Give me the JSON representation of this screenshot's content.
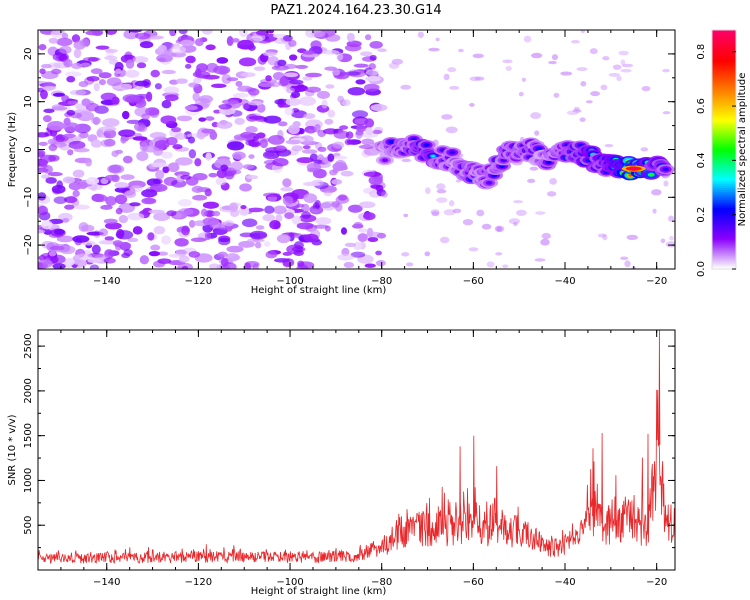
{
  "title": "PAZ1.2024.164.23.30.G14",
  "chart_data": [
    {
      "type": "heatmap",
      "xlabel": "Height of straight line (km)",
      "ylabel": "Frequency (Hz)",
      "xlim": [
        -155,
        -16
      ],
      "ylim": [
        -25,
        25
      ],
      "x_ticks": [
        -140,
        -120,
        -100,
        -80,
        -60,
        -40,
        -20
      ],
      "y_ticks": [
        -20,
        -10,
        0,
        10,
        20
      ],
      "colorbar": {
        "label": "Normalized spectral amplitude",
        "range": [
          0.0,
          0.88
        ],
        "ticks": [
          0.0,
          0.2,
          0.4,
          0.6,
          0.8
        ],
        "colormap": "gist_rainbow_r",
        "colors": [
          "#ffffff",
          "#8b00ff",
          "#0000ff",
          "#00ffff",
          "#00ff00",
          "#ffff00",
          "#ff7f00",
          "#ff0000",
          "#ff0066"
        ]
      },
      "noise_region": {
        "x_range": [
          -155,
          -80
        ],
        "freq_range": [
          -25,
          25
        ],
        "amplitude_range": [
          0.05,
          0.12
        ]
      },
      "signal_track": [
        {
          "x": -80,
          "freq": -1,
          "amp": 0.18
        },
        {
          "x": -75,
          "freq": 1,
          "amp": 0.25
        },
        {
          "x": -71,
          "freq": 0,
          "amp": 0.3
        },
        {
          "x": -68,
          "freq": -1.5,
          "amp": 0.3
        },
        {
          "x": -65,
          "freq": -2,
          "amp": 0.2
        },
        {
          "x": -60,
          "freq": -5,
          "amp": 0.25
        },
        {
          "x": -57,
          "freq": -6,
          "amp": 0.22
        },
        {
          "x": -53,
          "freq": -1,
          "amp": 0.25
        },
        {
          "x": -48,
          "freq": 0,
          "amp": 0.25
        },
        {
          "x": -44,
          "freq": -2,
          "amp": 0.2
        },
        {
          "x": -38,
          "freq": 0,
          "amp": 0.35
        },
        {
          "x": -34,
          "freq": -2,
          "amp": 0.35
        },
        {
          "x": -30,
          "freq": -3.5,
          "amp": 0.35
        },
        {
          "x": -25,
          "freq": -4,
          "amp": 0.88
        },
        {
          "x": -22,
          "freq": -4,
          "amp": 0.5
        },
        {
          "x": -18,
          "freq": -3,
          "amp": 0.3
        }
      ]
    },
    {
      "type": "line",
      "xlabel": "Height of straight line (km)",
      "ylabel": "SNR (10 * v/v)",
      "xlim": [
        -155,
        -16
      ],
      "ylim": [
        0,
        2680
      ],
      "x_ticks": [
        -140,
        -120,
        -100,
        -80,
        -60,
        -40,
        -20
      ],
      "y_ticks": [
        500,
        1000,
        1500,
        2000,
        2500
      ],
      "color": "#e8272a",
      "series": [
        {
          "envelope": [
            {
              "x": -155,
              "base": 130,
              "max": 260
            },
            {
              "x": -130,
              "base": 140,
              "max": 270
            },
            {
              "x": -112,
              "base": 150,
              "max": 320
            },
            {
              "x": -95,
              "base": 140,
              "max": 270
            },
            {
              "x": -85,
              "base": 160,
              "max": 300
            },
            {
              "x": -80,
              "base": 260,
              "max": 550
            },
            {
              "x": -76,
              "base": 420,
              "max": 850
            },
            {
              "x": -72,
              "base": 480,
              "max": 850
            },
            {
              "x": -68,
              "base": 450,
              "max": 900
            },
            {
              "x": -63,
              "base": 500,
              "max": 1380
            },
            {
              "x": -60,
              "base": 580,
              "max": 1500
            },
            {
              "x": -58,
              "base": 450,
              "max": 1000
            },
            {
              "x": -55,
              "base": 500,
              "max": 1160
            },
            {
              "x": -52,
              "base": 420,
              "max": 750
            },
            {
              "x": -49,
              "base": 450,
              "max": 830
            },
            {
              "x": -46,
              "base": 300,
              "max": 520
            },
            {
              "x": -42,
              "base": 240,
              "max": 430
            },
            {
              "x": -38,
              "base": 320,
              "max": 700
            },
            {
              "x": -34,
              "base": 600,
              "max": 1360
            },
            {
              "x": -32,
              "base": 520,
              "max": 1530
            },
            {
              "x": -29,
              "base": 500,
              "max": 1060
            },
            {
              "x": -26,
              "base": 560,
              "max": 1000
            },
            {
              "x": -22,
              "base": 420,
              "max": 1520
            },
            {
              "x": -19.5,
              "base": 1400,
              "max": 2680
            },
            {
              "x": -18,
              "base": 500,
              "max": 1000
            },
            {
              "x": -16,
              "base": 550,
              "max": 800
            }
          ]
        }
      ]
    }
  ]
}
